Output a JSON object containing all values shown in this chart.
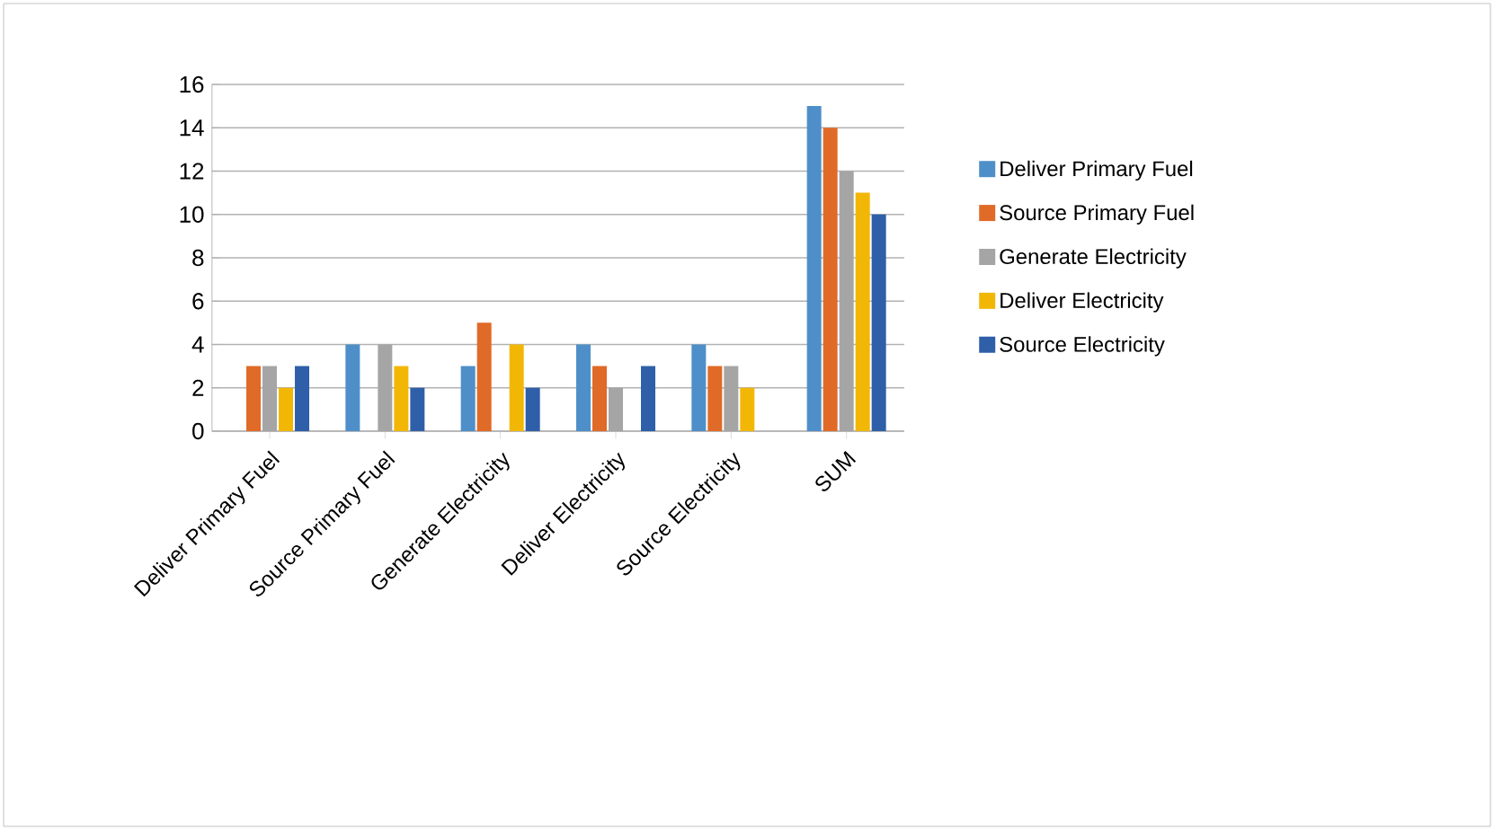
{
  "chart_data": {
    "type": "bar",
    "categories": [
      "Deliver Primary Fuel",
      "Source Primary Fuel",
      "Generate Electricity",
      "Deliver Electricity",
      "Source Electricity",
      "SUM"
    ],
    "series": [
      {
        "name": "Deliver Primary Fuel",
        "color": "#4e8fc9",
        "values": [
          0,
          4,
          3,
          4,
          4,
          15
        ]
      },
      {
        "name": "Source Primary Fuel",
        "color": "#e06a27",
        "values": [
          3,
          0,
          5,
          3,
          3,
          14
        ]
      },
      {
        "name": "Generate Electricity",
        "color": "#a5a5a5",
        "values": [
          3,
          4,
          0,
          2,
          3,
          12
        ]
      },
      {
        "name": "Deliver Electricity",
        "color": "#f2b705",
        "values": [
          2,
          3,
          4,
          0,
          2,
          11
        ]
      },
      {
        "name": "Source Electricity",
        "color": "#2e5fa8",
        "values": [
          3,
          2,
          2,
          3,
          0,
          10
        ]
      }
    ],
    "ylim": [
      0,
      16
    ],
    "yticks": [
      0,
      2,
      4,
      6,
      8,
      10,
      12,
      14,
      16
    ],
    "grid": "y",
    "legend": "right"
  }
}
